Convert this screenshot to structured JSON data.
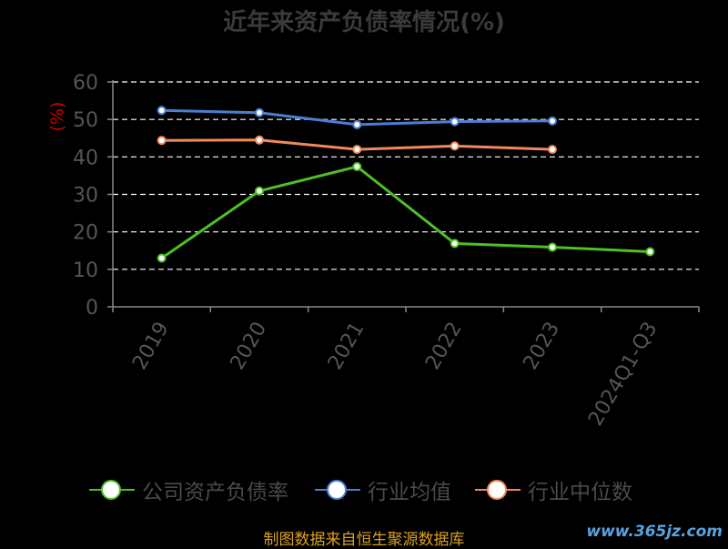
{
  "title": "近年来资产负债率情况(%)",
  "source": "制图数据来自恒生聚源数据库",
  "watermark": "www.365jz.com",
  "colors": {
    "background": "#000000",
    "grid": "#ffffff",
    "axis": "#888888",
    "tick_text": "#555555",
    "ylabel": "#cc0000"
  },
  "chart_data": {
    "type": "line",
    "categories": [
      "2019",
      "2020",
      "2021",
      "2022",
      "2023",
      "2024Q1-Q3"
    ],
    "ylabel": "(%)",
    "xlabel": "",
    "ylim": [
      0,
      60
    ],
    "yticks": [
      0,
      10,
      20,
      30,
      40,
      50,
      60
    ],
    "grid": true,
    "legend_position": "bottom",
    "series": [
      {
        "name": "公司资产负债率",
        "color": "#4fbf26",
        "values": [
          13.0,
          30.9,
          37.4,
          16.9,
          15.9,
          14.7
        ]
      },
      {
        "name": "行业均值",
        "color": "#4a7fd6",
        "values": [
          52.4,
          51.8,
          48.6,
          49.4,
          49.6,
          null
        ]
      },
      {
        "name": "行业中位数",
        "color": "#f08a5d",
        "values": [
          44.4,
          44.5,
          42.0,
          42.9,
          42.0,
          null
        ]
      }
    ]
  }
}
